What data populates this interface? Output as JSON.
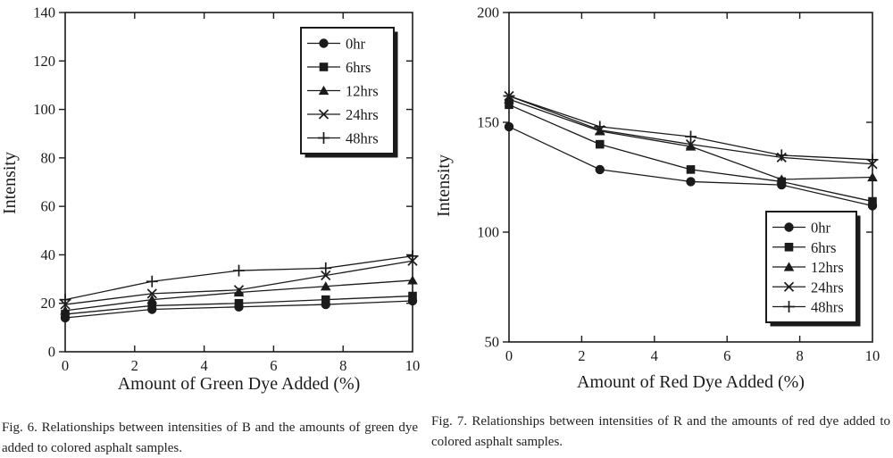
{
  "page": {
    "background": "#ffffff",
    "ink_color": "#1b1b1b"
  },
  "chart_data": [
    {
      "id": "fig6",
      "type": "line",
      "title": "",
      "xlabel": "Amount of Green Dye Added (%)",
      "ylabel": "Intensity",
      "xlim": [
        0,
        10
      ],
      "ylim": [
        0,
        140
      ],
      "xticks": [
        0,
        2,
        4,
        6,
        8,
        10
      ],
      "yticks": [
        0,
        20,
        40,
        60,
        80,
        100,
        120,
        140
      ],
      "grid": false,
      "legend_position": "top-right",
      "x": [
        0,
        2.5,
        5,
        7.5,
        10
      ],
      "series": [
        {
          "name": "0hr",
          "marker": "circle",
          "values": [
            14,
            17.5,
            18.5,
            19.5,
            21
          ]
        },
        {
          "name": "6hrs",
          "marker": "square",
          "values": [
            15.5,
            19,
            20,
            21.5,
            23
          ]
        },
        {
          "name": "12hrs",
          "marker": "triangle",
          "values": [
            17,
            21.5,
            24.5,
            27,
            29.5
          ]
        },
        {
          "name": "24hrs",
          "marker": "x",
          "values": [
            19.5,
            24,
            25.5,
            31.5,
            37.5
          ]
        },
        {
          "name": "48hrs",
          "marker": "plus",
          "values": [
            21.5,
            29,
            33.5,
            34.5,
            39.5
          ]
        }
      ],
      "caption": "Fig. 6. Relationships between intensities of B and the amounts of green dye added to colored asphalt samples."
    },
    {
      "id": "fig7",
      "type": "line",
      "title": "",
      "xlabel": "Amount of Red Dye Added (%)",
      "ylabel": "Intensity",
      "xlim": [
        0,
        10
      ],
      "ylim": [
        50,
        200
      ],
      "xticks": [
        0,
        2,
        4,
        6,
        8,
        10
      ],
      "yticks": [
        50,
        100,
        150,
        200
      ],
      "grid": false,
      "legend_position": "bottom-right",
      "x": [
        0,
        2.5,
        5,
        7.5,
        10
      ],
      "series": [
        {
          "name": "0hr",
          "marker": "circle",
          "values": [
            148,
            128.5,
            123,
            121.5,
            112
          ]
        },
        {
          "name": "6hrs",
          "marker": "square",
          "values": [
            158,
            140,
            128.5,
            123,
            114
          ]
        },
        {
          "name": "12hrs",
          "marker": "triangle",
          "values": [
            160.5,
            146,
            139,
            124,
            125
          ]
        },
        {
          "name": "24hrs",
          "marker": "x",
          "values": [
            162,
            146.5,
            140,
            134,
            131
          ]
        },
        {
          "name": "48hrs",
          "marker": "plus",
          "values": [
            162,
            148,
            143.5,
            135,
            133
          ]
        }
      ],
      "caption": "Fig. 7. Relationships between intensities of R and the amounts of red dye added to colored asphalt samples."
    }
  ]
}
